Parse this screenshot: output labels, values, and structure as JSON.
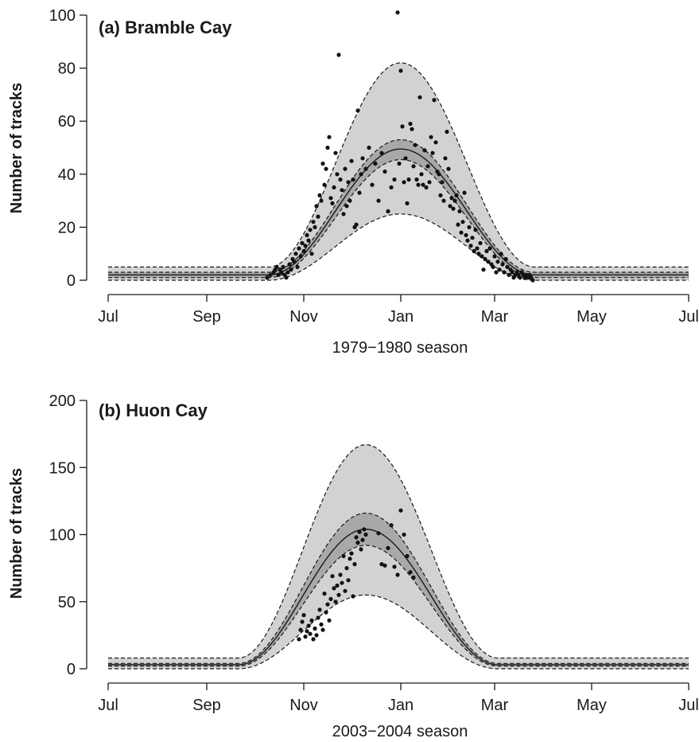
{
  "chart_data": [
    {
      "type": "line",
      "title": "(a) Bramble Cay",
      "xlabel": "1979−1980 season",
      "ylabel": "Number of tracks",
      "x_ticks": [
        {
          "label": "Jul",
          "day": 0
        },
        {
          "label": "Sep",
          "day": 62
        },
        {
          "label": "Nov",
          "day": 123
        },
        {
          "label": "Jan",
          "day": 184
        },
        {
          "label": "Mar",
          "day": 243
        },
        {
          "label": "May",
          "day": 304
        },
        {
          "label": "Jul",
          "day": 365
        }
      ],
      "xlim": [
        0,
        365
      ],
      "ylim": [
        0,
        100
      ],
      "y_ticks": [
        0,
        20,
        40,
        60,
        80,
        100
      ],
      "fitted": {
        "baseline": 2,
        "peak": 49.5,
        "start": 101,
        "peak_day": 184,
        "end": 268,
        "inner_baseline_low": 1,
        "inner_baseline_high": 3,
        "inner_peak_low": 45.5,
        "inner_peak_high": 53,
        "outer_baseline_low": 0,
        "outer_baseline_high": 5,
        "outer_peak_low": 25,
        "outer_peak_high": 82
      },
      "points": [
        [
          100,
          1
        ],
        [
          102,
          2
        ],
        [
          104,
          3
        ],
        [
          105,
          4
        ],
        [
          106,
          5
        ],
        [
          107,
          2
        ],
        [
          108,
          4
        ],
        [
          109,
          3
        ],
        [
          110,
          5
        ],
        [
          111,
          2
        ],
        [
          112,
          1
        ],
        [
          113,
          3
        ],
        [
          114,
          6
        ],
        [
          115,
          4
        ],
        [
          116,
          8
        ],
        [
          117,
          7
        ],
        [
          118,
          10
        ],
        [
          119,
          5
        ],
        [
          120,
          12
        ],
        [
          121,
          9
        ],
        [
          122,
          14
        ],
        [
          123,
          11
        ],
        [
          124,
          13
        ],
        [
          125,
          17
        ],
        [
          126,
          15
        ],
        [
          127,
          19
        ],
        [
          128,
          10
        ],
        [
          129,
          22
        ],
        [
          130,
          20
        ],
        [
          131,
          28
        ],
        [
          132,
          24
        ],
        [
          133,
          32
        ],
        [
          134,
          30
        ],
        [
          135,
          44
        ],
        [
          136,
          36
        ],
        [
          137,
          42
        ],
        [
          138,
          50
        ],
        [
          139,
          54
        ],
        [
          140,
          31
        ],
        [
          141,
          29
        ],
        [
          142,
          35
        ],
        [
          143,
          48
        ],
        [
          144,
          40
        ],
        [
          145,
          85
        ],
        [
          146,
          38
        ],
        [
          147,
          34
        ],
        [
          148,
          25
        ],
        [
          149,
          42
        ],
        [
          150,
          28
        ],
        [
          151,
          37
        ],
        [
          152,
          30
        ],
        [
          153,
          45
        ],
        [
          154,
          38
        ],
        [
          155,
          20
        ],
        [
          156,
          21
        ],
        [
          157,
          64
        ],
        [
          158,
          33
        ],
        [
          159,
          40
        ],
        [
          160,
          46
        ],
        [
          162,
          42
        ],
        [
          164,
          50
        ],
        [
          166,
          36
        ],
        [
          168,
          44
        ],
        [
          170,
          30
        ],
        [
          172,
          48
        ],
        [
          174,
          41
        ],
        [
          176,
          26
        ],
        [
          178,
          35
        ],
        [
          180,
          38
        ],
        [
          182,
          101
        ],
        [
          183,
          44
        ],
        [
          184,
          79
        ],
        [
          185,
          58
        ],
        [
          186,
          37
        ],
        [
          187,
          46
        ],
        [
          188,
          29
        ],
        [
          189,
          38
        ],
        [
          190,
          59
        ],
        [
          191,
          57
        ],
        [
          192,
          43
        ],
        [
          193,
          51
        ],
        [
          194,
          38
        ],
        [
          195,
          36
        ],
        [
          196,
          69
        ],
        [
          197,
          40
        ],
        [
          198,
          36
        ],
        [
          199,
          49
        ],
        [
          200,
          35
        ],
        [
          201,
          43
        ],
        [
          202,
          37
        ],
        [
          203,
          54
        ],
        [
          204,
          48
        ],
        [
          205,
          68
        ],
        [
          206,
          52
        ],
        [
          207,
          41
        ],
        [
          208,
          40
        ],
        [
          209,
          32
        ],
        [
          210,
          37
        ],
        [
          211,
          30
        ],
        [
          212,
          46
        ],
        [
          213,
          56
        ],
        [
          214,
          42
        ],
        [
          215,
          28
        ],
        [
          216,
          31
        ],
        [
          217,
          27
        ],
        [
          218,
          30
        ],
        [
          219,
          32
        ],
        [
          220,
          21
        ],
        [
          221,
          26
        ],
        [
          222,
          18
        ],
        [
          223,
          22
        ],
        [
          224,
          33
        ],
        [
          225,
          17
        ],
        [
          226,
          15
        ],
        [
          227,
          20
        ],
        [
          228,
          13
        ],
        [
          229,
          16
        ],
        [
          230,
          11
        ],
        [
          231,
          19
        ],
        [
          232,
          12
        ],
        [
          233,
          10
        ],
        [
          234,
          14
        ],
        [
          235,
          9
        ],
        [
          236,
          4
        ],
        [
          237,
          8
        ],
        [
          238,
          11
        ],
        [
          239,
          7
        ],
        [
          240,
          12
        ],
        [
          241,
          6
        ],
        [
          242,
          5
        ],
        [
          243,
          9
        ],
        [
          244,
          3
        ],
        [
          245,
          7
        ],
        [
          246,
          4
        ],
        [
          247,
          10
        ],
        [
          248,
          6
        ],
        [
          249,
          3
        ],
        [
          250,
          8
        ],
        [
          251,
          5
        ],
        [
          252,
          2
        ],
        [
          253,
          4
        ],
        [
          254,
          3
        ],
        [
          255,
          1
        ],
        [
          256,
          2
        ],
        [
          257,
          3
        ],
        [
          258,
          2
        ],
        [
          259,
          1
        ],
        [
          260,
          3
        ],
        [
          261,
          2
        ],
        [
          262,
          1
        ],
        [
          263,
          2
        ],
        [
          264,
          1
        ],
        [
          265,
          2
        ],
        [
          266,
          1
        ],
        [
          267,
          0
        ]
      ]
    },
    {
      "type": "line",
      "title": "(b) Huon Cay",
      "xlabel": "2003−2004 season",
      "ylabel": "Number of tracks",
      "x_ticks": [
        {
          "label": "Jul",
          "day": 0
        },
        {
          "label": "Sep",
          "day": 62
        },
        {
          "label": "Nov",
          "day": 123
        },
        {
          "label": "Jan",
          "day": 184
        },
        {
          "label": "Mar",
          "day": 243
        },
        {
          "label": "May",
          "day": 304
        },
        {
          "label": "Jul",
          "day": 365
        }
      ],
      "xlim": [
        0,
        365
      ],
      "ylim": [
        0,
        200
      ],
      "y_ticks": [
        0,
        50,
        100,
        150,
        200
      ],
      "fitted": {
        "baseline": 3,
        "peak": 104,
        "start": 82,
        "peak_day": 162,
        "end": 245,
        "inner_baseline_low": 2,
        "inner_baseline_high": 4,
        "inner_peak_low": 92,
        "inner_peak_high": 116,
        "outer_baseline_low": 0,
        "outer_baseline_high": 8,
        "outer_peak_low": 55,
        "outer_peak_high": 167
      },
      "points": [
        [
          120,
          22
        ],
        [
          121,
          29
        ],
        [
          122,
          35
        ],
        [
          123,
          40
        ],
        [
          124,
          24
        ],
        [
          125,
          28
        ],
        [
          126,
          32
        ],
        [
          127,
          26
        ],
        [
          128,
          36
        ],
        [
          129,
          22
        ],
        [
          130,
          30
        ],
        [
          131,
          25
        ],
        [
          132,
          38
        ],
        [
          133,
          44
        ],
        [
          134,
          33
        ],
        [
          135,
          29
        ],
        [
          136,
          56
        ],
        [
          137,
          42
        ],
        [
          138,
          48
        ],
        [
          139,
          36
        ],
        [
          140,
          52
        ],
        [
          141,
          69
        ],
        [
          142,
          60
        ],
        [
          143,
          50
        ],
        [
          144,
          62
        ],
        [
          145,
          55
        ],
        [
          146,
          70
        ],
        [
          147,
          64
        ],
        [
          148,
          84
        ],
        [
          149,
          58
        ],
        [
          150,
          75
        ],
        [
          151,
          66
        ],
        [
          152,
          82
        ],
        [
          153,
          86
        ],
        [
          154,
          54
        ],
        [
          155,
          78
        ],
        [
          156,
          98
        ],
        [
          157,
          94
        ],
        [
          158,
          102
        ],
        [
          159,
          89
        ],
        [
          160,
          96
        ],
        [
          161,
          104
        ],
        [
          162,
          100
        ],
        [
          170,
          101
        ],
        [
          172,
          78
        ],
        [
          174,
          77
        ],
        [
          176,
          90
        ],
        [
          178,
          107
        ],
        [
          180,
          76
        ],
        [
          182,
          70
        ],
        [
          184,
          118
        ],
        [
          186,
          100
        ],
        [
          188,
          84
        ],
        [
          190,
          72
        ],
        [
          192,
          68
        ]
      ]
    }
  ]
}
